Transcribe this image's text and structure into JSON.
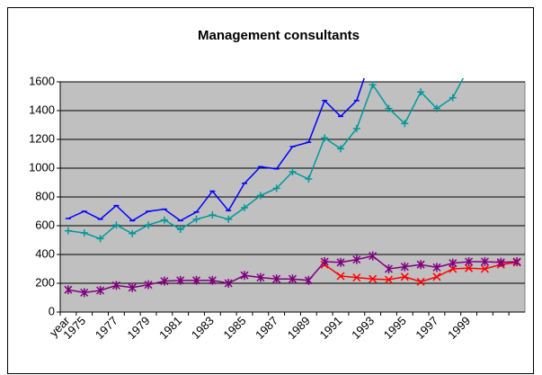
{
  "chart_data": {
    "type": "line",
    "title": "Management consultants",
    "categories": [
      "year",
      "1975",
      null,
      "1977",
      null,
      "1979",
      null,
      "1981",
      null,
      "1983",
      null,
      "1985",
      null,
      "1987",
      null,
      "1989",
      null,
      "1991",
      null,
      "1993",
      null,
      "1995",
      null,
      "1997",
      null,
      "1999",
      null,
      null,
      null
    ],
    "series": [
      {
        "color": "#0000ff",
        "marker": "dash",
        "values": [
          650,
          700,
          645,
          740,
          635,
          700,
          715,
          635,
          695,
          840,
          705,
          895,
          1010,
          995,
          1150,
          1180,
          1470,
          1360,
          1470,
          1800,
          null,
          null,
          null,
          null,
          null,
          null,
          null,
          null,
          null
        ]
      },
      {
        "color": "#009999",
        "marker": "plus",
        "values": [
          565,
          550,
          510,
          605,
          545,
          605,
          640,
          575,
          645,
          675,
          645,
          725,
          810,
          860,
          975,
          925,
          1210,
          1135,
          1275,
          1580,
          1415,
          1310,
          1530,
          1415,
          1490,
          1700,
          null,
          null,
          null
        ]
      },
      {
        "color": "#ff0000",
        "marker": "cross",
        "values": [
          null,
          null,
          null,
          null,
          null,
          null,
          null,
          null,
          null,
          null,
          null,
          null,
          null,
          null,
          null,
          null,
          330,
          250,
          240,
          230,
          225,
          245,
          210,
          245,
          300,
          305,
          300,
          330,
          345
        ]
      },
      {
        "color": "#800080",
        "marker": "star",
        "values": [
          155,
          135,
          150,
          185,
          170,
          190,
          215,
          220,
          220,
          220,
          200,
          255,
          240,
          230,
          230,
          220,
          350,
          345,
          365,
          390,
          300,
          315,
          330,
          310,
          340,
          350,
          350,
          345,
          350
        ]
      }
    ],
    "ylim": [
      0,
      1600
    ],
    "yticks": [
      0,
      200,
      400,
      600,
      800,
      1000,
      1200,
      1400,
      1600
    ],
    "grid": true,
    "plot_background": "#c0c0c0"
  }
}
